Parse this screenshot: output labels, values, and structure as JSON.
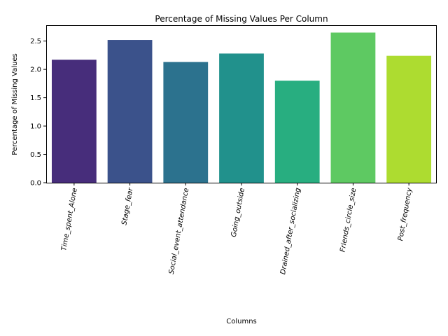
{
  "chart_data": {
    "type": "bar",
    "title": "Percentage of Missing Values Per Column",
    "xlabel": "Columns",
    "ylabel": "Percentage of Missing Values",
    "categories": [
      "Time_spent_Alone",
      "Stage_fear",
      "Social_event_attendance",
      "Going_outside",
      "Drained_after_socializing",
      "Friends_circle_size",
      "Post_frequency"
    ],
    "values": [
      2.17,
      2.52,
      2.13,
      2.28,
      1.8,
      2.65,
      2.24
    ],
    "colors": [
      "#472d7b",
      "#3b528b",
      "#2c728e",
      "#21918c",
      "#28ae80",
      "#5ec962",
      "#addc30"
    ],
    "yticks": [
      0.0,
      0.5,
      1.0,
      1.5,
      2.0,
      2.5
    ],
    "ylim": [
      0,
      2.78
    ],
    "grid": false,
    "legend": "none"
  }
}
